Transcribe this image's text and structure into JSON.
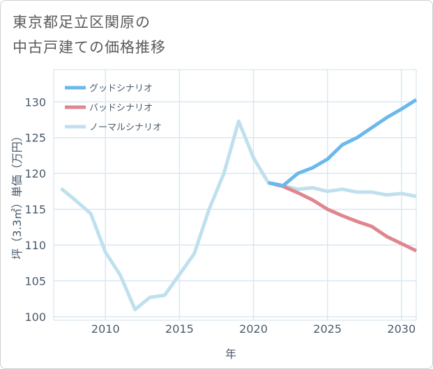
{
  "title_line1": "東京都足立区関原の",
  "title_line2": "中古戸建ての価格推移",
  "chart_data": {
    "type": "line",
    "xlabel": "年",
    "ylabel": "坪（3.3㎡）単価（万円）",
    "xlim": [
      2006.5,
      2031
    ],
    "ylim": [
      99.5,
      134.5
    ],
    "xticks": [
      2010,
      2015,
      2020,
      2025,
      2030
    ],
    "yticks": [
      100,
      105,
      110,
      115,
      120,
      125,
      130
    ],
    "legend_position": "top-left",
    "series": [
      {
        "name": "グッドシナリオ",
        "color": "#6bb8ec",
        "x": [
          2021,
          2022,
          2023,
          2024,
          2025,
          2026,
          2027,
          2028,
          2029,
          2030,
          2031
        ],
        "y": [
          118.7,
          118.3,
          120.0,
          120.8,
          122.0,
          124.0,
          125.0,
          126.4,
          127.8,
          129.0,
          130.3
        ]
      },
      {
        "name": "バッドシナリオ",
        "color": "#e0868f",
        "x": [
          2021,
          2022,
          2023,
          2024,
          2025,
          2026,
          2027,
          2028,
          2029,
          2030,
          2031
        ],
        "y": [
          118.7,
          118.2,
          117.3,
          116.3,
          115.0,
          114.1,
          113.3,
          112.6,
          111.2,
          110.2,
          109.2
        ]
      },
      {
        "name": "ノーマルシナリオ",
        "color": "#bfe0ee",
        "x": [
          2007,
          2008,
          2009,
          2010,
          2011,
          2012,
          2013,
          2014,
          2015,
          2016,
          2017,
          2018,
          2019,
          2020,
          2021,
          2022,
          2023,
          2024,
          2025,
          2026,
          2027,
          2028,
          2029,
          2030,
          2031
        ],
        "y": [
          117.9,
          116.2,
          114.4,
          109.0,
          105.8,
          101.0,
          102.7,
          103.0,
          105.9,
          108.8,
          115.0,
          120.0,
          127.3,
          122.2,
          118.7,
          118.3,
          117.8,
          118.0,
          117.5,
          117.8,
          117.4,
          117.4,
          117.0,
          117.2,
          116.8
        ]
      }
    ]
  }
}
